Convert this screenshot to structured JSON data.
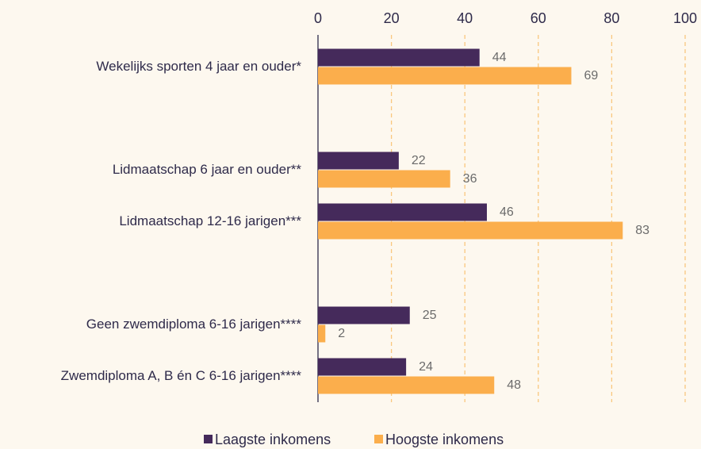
{
  "chart_data": {
    "type": "bar",
    "orientation": "horizontal",
    "categories": [
      "Wekelijks sporten 4 jaar en ouder*",
      null,
      "Lidmaatschap 6 jaar en ouder**",
      "Lidmaatschap 12-16 jarigen***",
      null,
      "Geen zwemdiploma 6-16 jarigen****",
      "Zwemdiploma A, B én C 6-16 jarigen****"
    ],
    "series": [
      {
        "name": "Laagste inkomens",
        "color": "#452a5b",
        "values": [
          44,
          null,
          22,
          46,
          null,
          25,
          24
        ]
      },
      {
        "name": "Hoogste inkomens",
        "color": "#fbae4c",
        "values": [
          69,
          null,
          36,
          83,
          null,
          2,
          48
        ]
      }
    ],
    "xlim": [
      0,
      100
    ],
    "xticks": [
      0,
      20,
      40,
      60,
      80,
      100
    ],
    "grid": true,
    "legend": "bottom"
  }
}
